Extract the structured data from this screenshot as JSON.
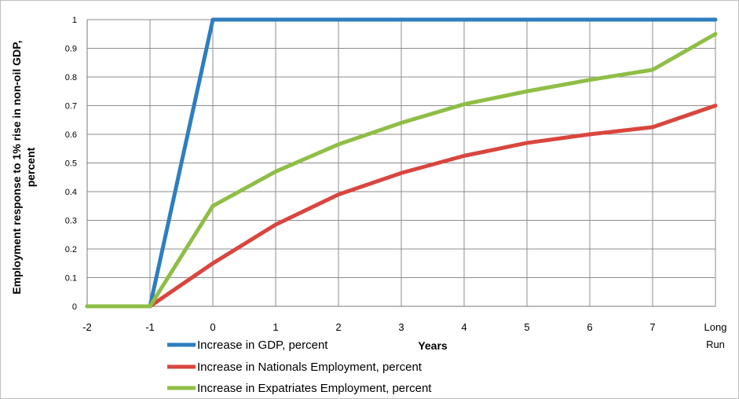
{
  "chart_data": {
    "type": "line",
    "title": "",
    "xlabel": "Years",
    "ylabel_lines": [
      "Employment response to 1% rise in non-oil GDP,",
      "percent"
    ],
    "categories": [
      "-2",
      "-1",
      "0",
      "1",
      "2",
      "3",
      "4",
      "5",
      "6",
      "7",
      "Long Run"
    ],
    "ylim": [
      0,
      1
    ],
    "yticks": [
      "0",
      "0.1",
      "0.2",
      "0.3",
      "0.4",
      "0.5",
      "0.6",
      "0.7",
      "0.8",
      "0.9",
      "1"
    ],
    "grid": true,
    "legend_position": "bottom-left",
    "series": [
      {
        "name": "Increase in GDP, percent",
        "color": "#2e7ebf",
        "values": [
          0,
          0,
          1,
          1,
          1,
          1,
          1,
          1,
          1,
          1,
          1
        ]
      },
      {
        "name": "Increase in Nationals Employment, percent",
        "color": "#d9463e",
        "values": [
          0,
          0,
          0.15,
          0.285,
          0.39,
          0.465,
          0.525,
          0.57,
          0.6,
          0.625,
          0.7
        ]
      },
      {
        "name": "Increase in Expatriates Employment, percent",
        "color": "#8fbe46",
        "values": [
          0,
          0,
          0.35,
          0.47,
          0.565,
          0.64,
          0.705,
          0.75,
          0.79,
          0.825,
          0.95
        ]
      }
    ]
  }
}
